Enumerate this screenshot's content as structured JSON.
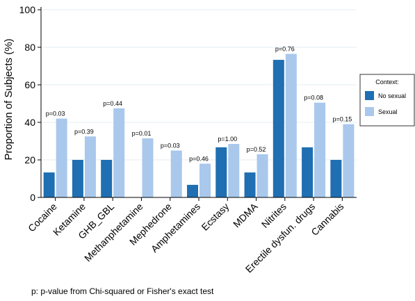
{
  "chart_data": {
    "type": "bar",
    "ylabel": "Proportion of Subjects (%)",
    "ylim": [
      0,
      100
    ],
    "yticks": [
      0,
      20,
      40,
      60,
      80,
      100
    ],
    "grid": true,
    "categories": [
      "Cocaine",
      "Ketamine",
      "GHB_GBL",
      "Methanphetamine",
      "Mephedrone",
      "Amphetamines",
      "Ecstasy",
      "MDMA",
      "Nitrites",
      "Erectile dysfun. drugs",
      "Cannabis"
    ],
    "series": [
      {
        "name": "No sexual",
        "color": "#1f6fb2",
        "values": [
          13.3,
          20,
          20,
          0,
          0,
          6.7,
          26.7,
          13.3,
          73.3,
          26.7,
          20
        ]
      },
      {
        "name": "Sexual",
        "color": "#a9c8ec",
        "values": [
          42,
          32.5,
          47.5,
          31.5,
          25,
          18,
          28.5,
          23,
          76.5,
          50.5,
          39
        ]
      }
    ],
    "p_values": [
      "p=0.03",
      "p=0.39",
      "p=0.44",
      "p=0.01",
      "p=0.03",
      "p=0.46",
      "p=1.00",
      "p=0.52",
      "p=0.76",
      "p=0.08",
      "p=0.15"
    ],
    "legend": {
      "title": "Context:",
      "placement": "right"
    },
    "footnote": "p: p-value from Chi-squared or Fisher's exact test"
  }
}
